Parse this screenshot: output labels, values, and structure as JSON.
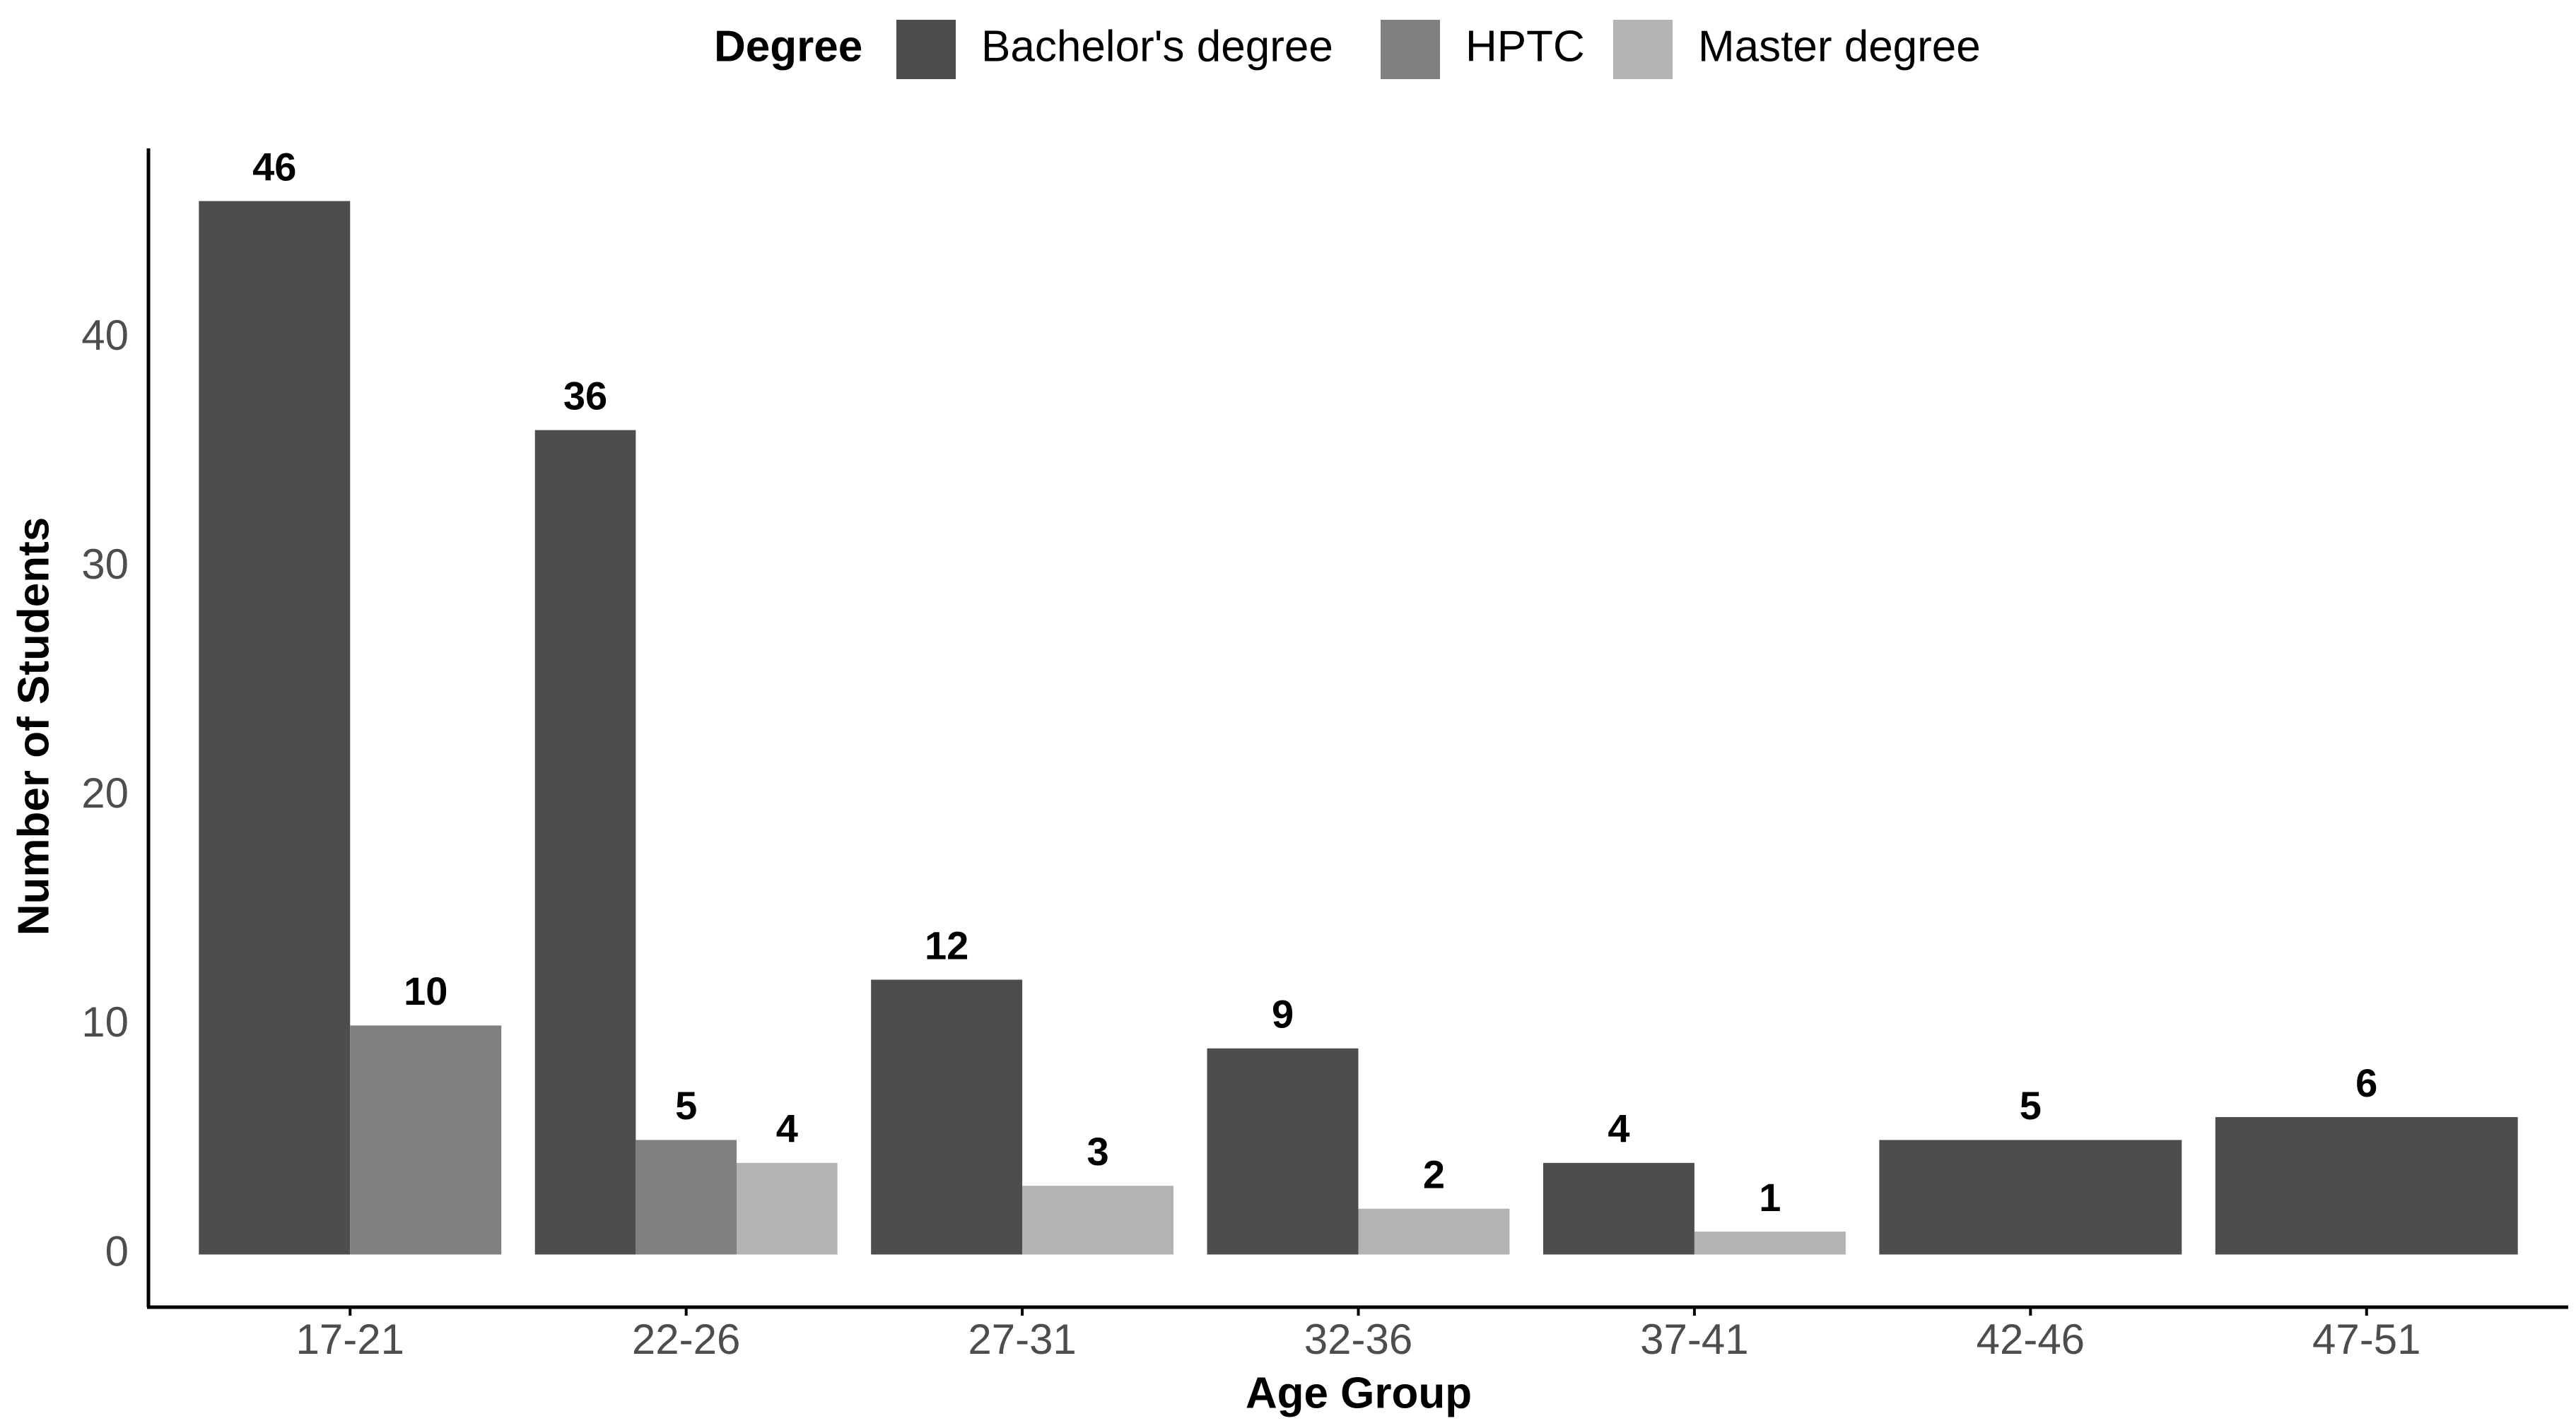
{
  "chart_data": {
    "type": "bar",
    "x_label": "Age Group",
    "y_label": "Number of Students",
    "legend_title": "Degree",
    "categories": [
      "17-21",
      "22-26",
      "27-31",
      "32-36",
      "37-41",
      "42-46",
      "47-51"
    ],
    "series": [
      {
        "name": "Bachelor's degree",
        "color": "#4d4d4d",
        "values": [
          46,
          36,
          12,
          9,
          4,
          5,
          6
        ]
      },
      {
        "name": "HPTC",
        "color": "#808080",
        "values": [
          10,
          5,
          null,
          null,
          null,
          null,
          null
        ]
      },
      {
        "name": "Master degree",
        "color": "#b3b3b3",
        "values": [
          null,
          4,
          3,
          2,
          1,
          null,
          null
        ]
      }
    ],
    "ylim": [
      -2.3,
      48.3
    ],
    "yticks": [
      0,
      10,
      20,
      30,
      40
    ],
    "grid": false,
    "legend_position": "top"
  }
}
